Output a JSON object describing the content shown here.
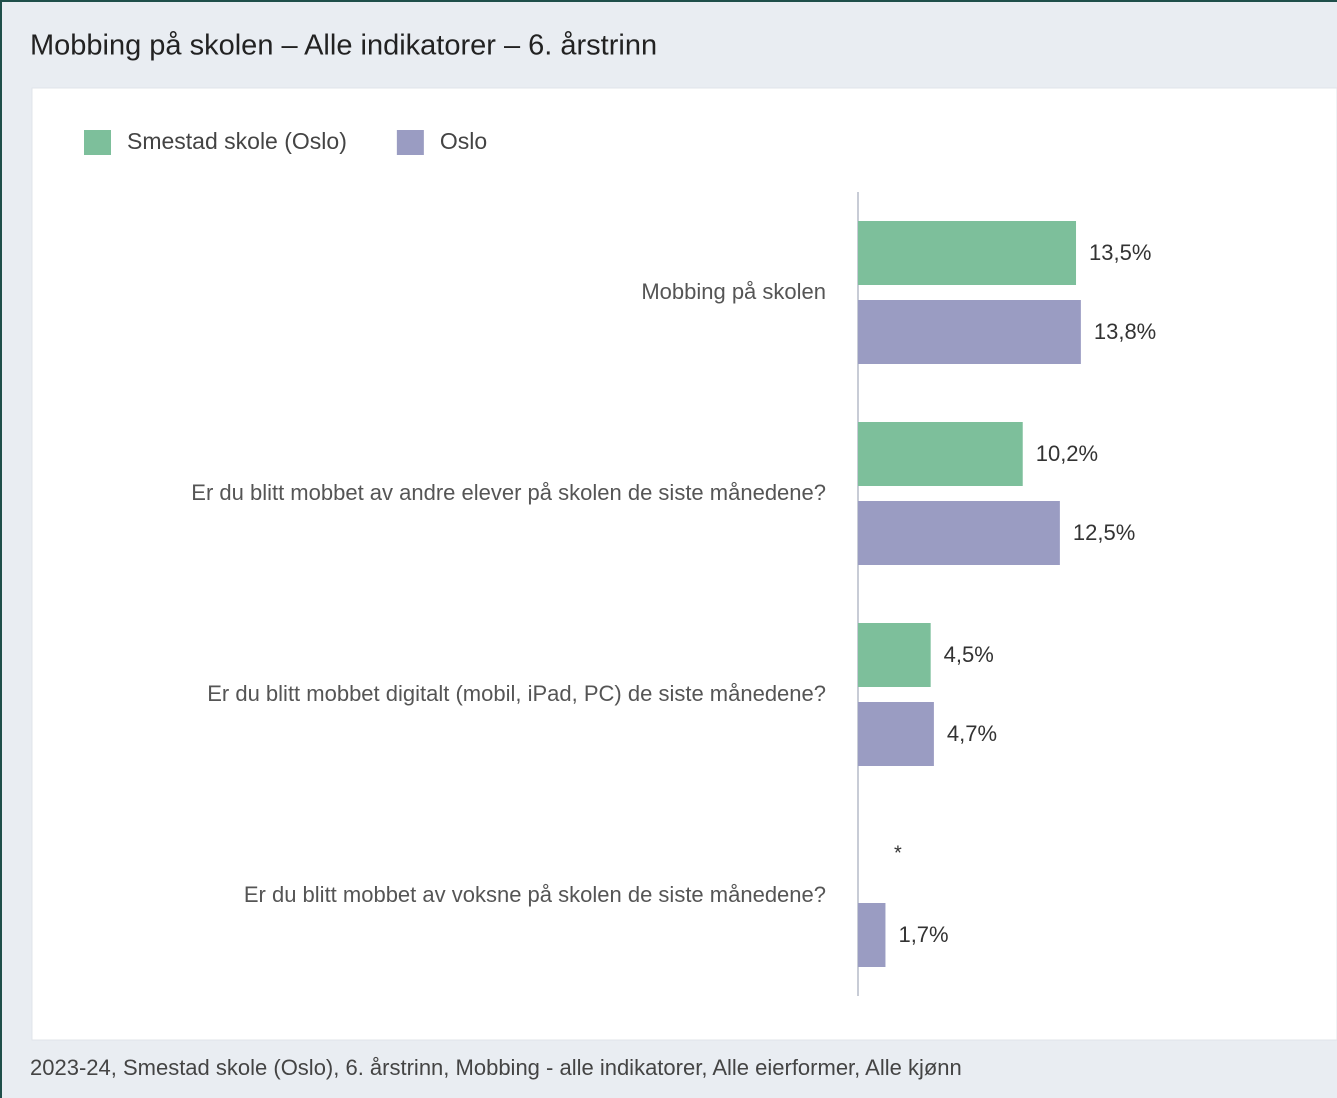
{
  "chart_data": {
    "type": "bar",
    "orientation": "horizontal",
    "title": "Mobbing på skolen – Alle indikatorer – 6. årstrinn",
    "categories": [
      "Mobbing på skolen",
      "Er du blitt mobbet av andre elever på skolen de siste månedene?",
      "Er du blitt mobbet digitalt (mobil, iPad, PC) de siste månedene?",
      "Er du blitt mobbet av voksne på skolen de siste månedene?"
    ],
    "series": [
      {
        "name": "Smestad skole (Oslo)",
        "color": "#7dbf9b",
        "values": [
          13.5,
          10.2,
          4.5,
          null
        ],
        "value_labels": [
          "13,5%",
          "10,2%",
          "4,5%",
          "*"
        ]
      },
      {
        "name": "Oslo",
        "color": "#9a9cc2",
        "values": [
          13.8,
          12.5,
          4.7,
          1.7
        ],
        "value_labels": [
          "13,8%",
          "12,5%",
          "4,7%",
          "1,7%"
        ]
      }
    ],
    "xlim": [
      0,
      30
    ],
    "legend": "top-left",
    "footnote": "2023-24, Smestad skole (Oslo), 6. årstrinn, Mobbing - alle indikatorer, Alle eierformer, Alle kjønn"
  }
}
